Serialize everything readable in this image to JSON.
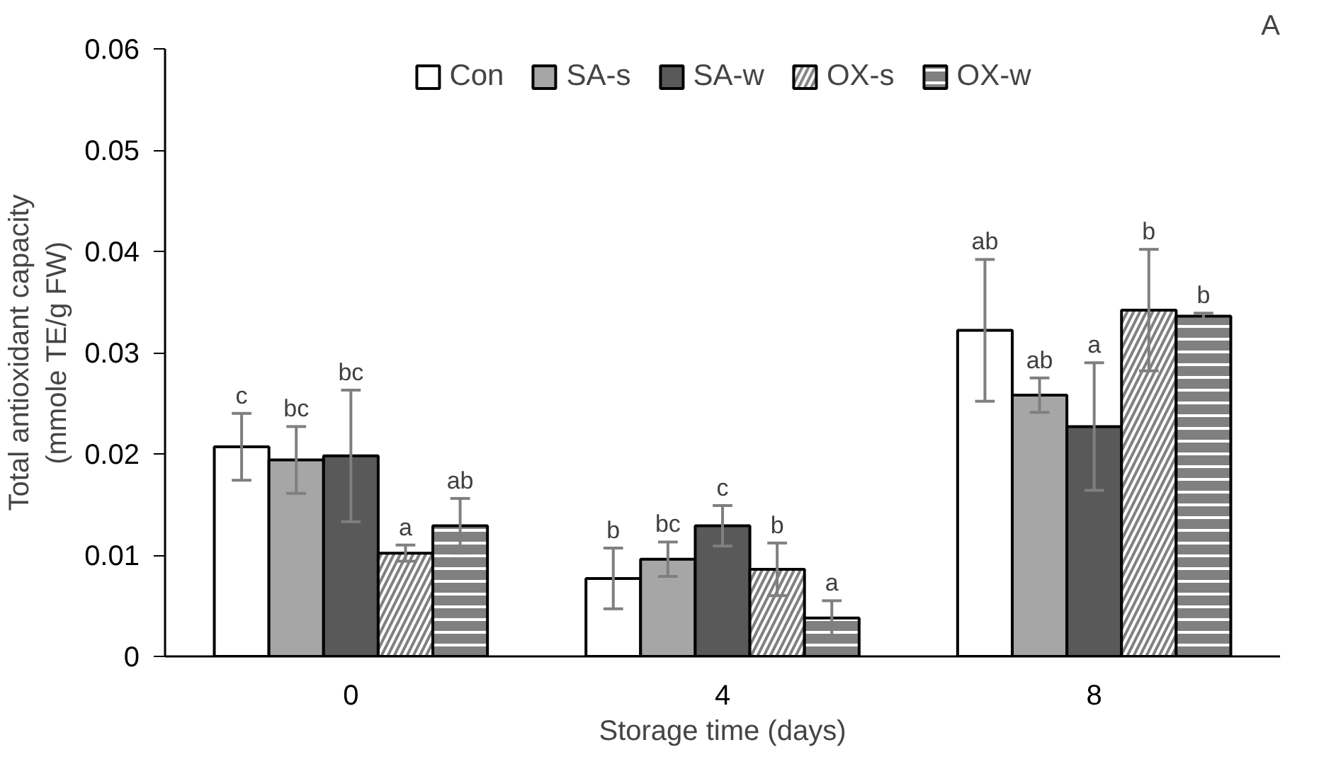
{
  "chart_data": {
    "type": "bar",
    "xlabel": "Storage time (days)",
    "ylabel": "Total antioxidant capacity\n(mmole TE/g FW)",
    "categories": [
      "0",
      "4",
      "8"
    ],
    "series": [
      {
        "name": "Con",
        "color": "#ffffff",
        "values": [
          0.0207,
          0.0077,
          0.0322
        ],
        "errors": [
          0.0033,
          0.003,
          0.007
        ],
        "value_labels": [
          "c",
          "b",
          "ab"
        ]
      },
      {
        "name": "SA-s",
        "color": "#a6a6a6",
        "values": [
          0.0194,
          0.0096,
          0.0258
        ],
        "errors": [
          0.0033,
          0.0017,
          0.0017
        ],
        "value_labels": [
          "bc",
          "bc",
          "ab"
        ]
      },
      {
        "name": "SA-w",
        "color": "#595959",
        "values": [
          0.0198,
          0.0129,
          0.0227
        ],
        "errors": [
          0.0065,
          0.002,
          0.0063
        ],
        "value_labels": [
          "bc",
          "c",
          "a"
        ]
      },
      {
        "name": "OX-s",
        "color": "#808080",
        "values": [
          0.0102,
          0.0086,
          0.0342
        ],
        "errors": [
          0.0008,
          0.0026,
          0.006
        ],
        "value_labels": [
          "a",
          "b",
          "b"
        ]
      },
      {
        "name": "OX-w",
        "color": "#808080",
        "values": [
          0.0129,
          0.0038,
          0.0336
        ],
        "errors": [
          0.0027,
          0.0017,
          0.0003
        ],
        "value_labels": [
          "ab",
          "a",
          "b"
        ]
      }
    ],
    "ylim": [
      0,
      0.06
    ],
    "yticks": [
      0,
      0.01,
      0.02,
      0.03,
      0.04,
      0.05,
      0.06
    ],
    "grid": false,
    "legend": "top",
    "annotations": [
      "A"
    ]
  }
}
